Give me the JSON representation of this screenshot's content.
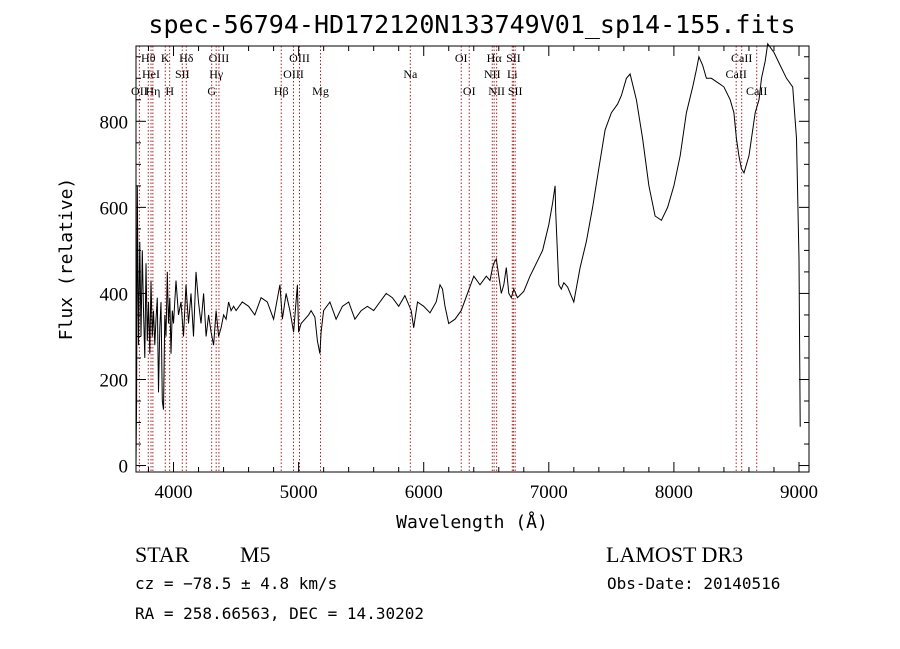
{
  "chart_data": {
    "type": "line",
    "title": "spec-56794-HD172120N133749V01_sp14-155.fits",
    "xlabel": "Wavelength (Å)",
    "ylabel": "Flux (relative)",
    "xlim": [
      3700,
      9080
    ],
    "ylim": [
      -15,
      975
    ],
    "x_ticks": [
      4000,
      5000,
      6000,
      7000,
      8000,
      9000
    ],
    "y_ticks": [
      0,
      200,
      400,
      600,
      800
    ],
    "x_tick_labels": [
      "4000",
      "5000",
      "6000",
      "7000",
      "8000",
      "9000"
    ],
    "y_tick_labels": [
      "0",
      "200",
      "400",
      "600",
      "800"
    ],
    "series": [
      {
        "name": "flux",
        "x": [
          3700,
          3705,
          3710,
          3720,
          3730,
          3740,
          3750,
          3760,
          3770,
          3780,
          3790,
          3800,
          3810,
          3820,
          3830,
          3840,
          3850,
          3860,
          3870,
          3880,
          3890,
          3900,
          3910,
          3920,
          3930,
          3940,
          3950,
          3960,
          3970,
          3980,
          3990,
          4000,
          4020,
          4040,
          4060,
          4080,
          4100,
          4120,
          4140,
          4160,
          4180,
          4200,
          4220,
          4240,
          4260,
          4280,
          4300,
          4320,
          4340,
          4360,
          4380,
          4400,
          4420,
          4440,
          4460,
          4480,
          4500,
          4550,
          4600,
          4650,
          4700,
          4750,
          4800,
          4850,
          4870,
          4900,
          4930,
          4960,
          4990,
          5000,
          5020,
          5050,
          5080,
          5100,
          5130,
          5150,
          5170,
          5180,
          5200,
          5250,
          5300,
          5350,
          5400,
          5450,
          5500,
          5550,
          5600,
          5650,
          5700,
          5750,
          5800,
          5850,
          5900,
          5920,
          5950,
          6000,
          6050,
          6100,
          6130,
          6150,
          6170,
          6200,
          6250,
          6300,
          6350,
          6400,
          6450,
          6500,
          6530,
          6550,
          6560,
          6580,
          6600,
          6620,
          6640,
          6660,
          6680,
          6700,
          6720,
          6750,
          6800,
          6850,
          6900,
          6950,
          7000,
          7030,
          7050,
          7055,
          7080,
          7100,
          7120,
          7150,
          7200,
          7250,
          7300,
          7350,
          7400,
          7450,
          7500,
          7550,
          7580,
          7600,
          7620,
          7650,
          7700,
          7750,
          7800,
          7850,
          7900,
          7950,
          8000,
          8050,
          8100,
          8150,
          8180,
          8200,
          8230,
          8260,
          8300,
          8350,
          8400,
          8450,
          8480,
          8500,
          8520,
          8540,
          8560,
          8600,
          8630,
          8650,
          8680,
          8700,
          8730,
          8750,
          8800,
          8850,
          8900,
          8950,
          8980,
          9000,
          9010
        ],
        "y": [
          0,
          150,
          650,
          280,
          520,
          300,
          500,
          360,
          250,
          470,
          290,
          380,
          260,
          430,
          300,
          360,
          280,
          340,
          390,
          170,
          320,
          380,
          150,
          130,
          350,
          300,
          450,
          330,
          390,
          260,
          360,
          330,
          430,
          350,
          380,
          300,
          420,
          330,
          400,
          300,
          450,
          380,
          330,
          400,
          300,
          350,
          310,
          280,
          360,
          300,
          320,
          350,
          340,
          380,
          360,
          370,
          360,
          380,
          370,
          350,
          390,
          380,
          340,
          420,
          340,
          400,
          360,
          310,
          420,
          310,
          330,
          340,
          350,
          360,
          345,
          290,
          260,
          310,
          360,
          380,
          340,
          370,
          380,
          340,
          360,
          370,
          360,
          380,
          400,
          390,
          370,
          395,
          360,
          320,
          380,
          370,
          355,
          380,
          420,
          410,
          370,
          330,
          340,
          360,
          400,
          440,
          420,
          440,
          430,
          460,
          470,
          480,
          440,
          400,
          420,
          460,
          400,
          390,
          410,
          390,
          405,
          440,
          470,
          500,
          560,
          610,
          650,
          590,
          420,
          410,
          425,
          415,
          380,
          460,
          520,
          600,
          690,
          780,
          820,
          840,
          860,
          880,
          900,
          910,
          850,
          760,
          650,
          580,
          570,
          600,
          650,
          720,
          820,
          880,
          920,
          950,
          930,
          900,
          900,
          890,
          880,
          850,
          820,
          760,
          720,
          690,
          680,
          720,
          780,
          820,
          850,
          900,
          940,
          980,
          960,
          930,
          900,
          880,
          760,
          480,
          90
        ]
      }
    ],
    "line_labels": [
      {
        "label": "OII",
        "x": 3727,
        "row": 3
      },
      {
        "label": "Hθ",
        "x": 3798,
        "row": 1
      },
      {
        "label": "HeI",
        "x": 3820,
        "row": 2
      },
      {
        "label": "Hη",
        "x": 3835,
        "row": 3
      },
      {
        "label": "K",
        "x": 3934,
        "row": 1
      },
      {
        "label": "H",
        "x": 3969,
        "row": 3
      },
      {
        "label": "SII",
        "x": 4070,
        "row": 2
      },
      {
        "label": "Hδ",
        "x": 4102,
        "row": 1
      },
      {
        "label": "Hγ",
        "x": 4341,
        "row": 2
      },
      {
        "label": "G",
        "x": 4305,
        "row": 3
      },
      {
        "label": "OIII",
        "x": 4363,
        "row": 1
      },
      {
        "label": "Hβ",
        "x": 4861,
        "row": 3
      },
      {
        "label": "OIII",
        "x": 4959,
        "row": 2
      },
      {
        "label": "OIII",
        "x": 5007,
        "row": 1
      },
      {
        "label": "Mg",
        "x": 5175,
        "row": 3
      },
      {
        "label": "Na",
        "x": 5893,
        "row": 2
      },
      {
        "label": "OI",
        "x": 6300,
        "row": 1
      },
      {
        "label": "OI",
        "x": 6364,
        "row": 3
      },
      {
        "label": "NII",
        "x": 6548,
        "row": 2
      },
      {
        "label": "Hα",
        "x": 6563,
        "row": 1
      },
      {
        "label": "NII",
        "x": 6583,
        "row": 3
      },
      {
        "label": "Li",
        "x": 6708,
        "row": 2
      },
      {
        "label": "SII",
        "x": 6717,
        "row": 1
      },
      {
        "label": "SII",
        "x": 6731,
        "row": 3
      },
      {
        "label": "CaII",
        "x": 8498,
        "row": 2
      },
      {
        "label": "CaII",
        "x": 8542,
        "row": 1
      },
      {
        "label": "CaII",
        "x": 8662,
        "row": 3
      }
    ],
    "line_color": "#b22222",
    "grid": false
  },
  "info": {
    "class": "STAR",
    "subclass": "M5",
    "cz": "cz = −78.5 ± 4.8 km/s",
    "coords": "RA = 258.66563, DEC =  14.30202",
    "survey": "LAMOST DR3",
    "obs_date": "Obs-Date: 20140516"
  }
}
